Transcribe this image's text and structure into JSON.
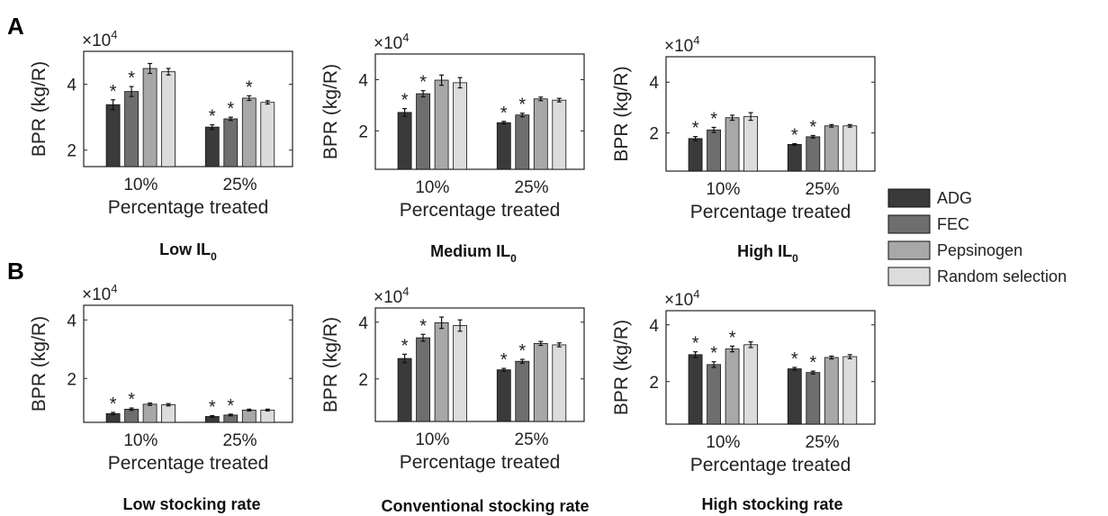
{
  "panel_labels": [
    "A",
    "B"
  ],
  "legend": [
    {
      "label": "ADG",
      "color": "#3a3a3a"
    },
    {
      "label": "FEC",
      "color": "#6e6e6e"
    },
    {
      "label": "Pepsinogen",
      "color": "#a8a8a8"
    },
    {
      "label": "Random selection",
      "color": "#dcdcdc"
    }
  ],
  "chart_data": [
    {
      "type": "bar",
      "panel": "A",
      "caption": "Low IL",
      "caption_sub": "0",
      "categories": [
        "10%",
        "25%"
      ],
      "xlabel": "Percentage treated",
      "ylabel": "BPR (kg/R)",
      "exponent_base": "×10",
      "exponent_power": "4",
      "ylim": [
        1.5,
        5.0
      ],
      "yticks": [
        2,
        4
      ],
      "series": [
        {
          "name": "ADG",
          "values": [
            3.38,
            2.7
          ],
          "errors": [
            0.15,
            0.07
          ],
          "star": [
            true,
            true
          ]
        },
        {
          "name": "FEC",
          "values": [
            3.78,
            2.95
          ],
          "errors": [
            0.15,
            0.05
          ],
          "star": [
            true,
            true
          ]
        },
        {
          "name": "Pepsinogen",
          "values": [
            4.48,
            3.58
          ],
          "errors": [
            0.15,
            0.07
          ],
          "star": [
            false,
            true
          ]
        },
        {
          "name": "Random selection",
          "values": [
            4.38,
            3.45
          ],
          "errors": [
            0.1,
            0.05
          ],
          "star": [
            false,
            false
          ]
        }
      ]
    },
    {
      "type": "bar",
      "panel": "A",
      "caption": "Medium IL",
      "caption_sub": "0",
      "categories": [
        "10%",
        "25%"
      ],
      "xlabel": "Percentage treated",
      "ylabel": "BPR (kg/R)",
      "exponent_base": "×10",
      "exponent_power": "4",
      "ylim": [
        0.5,
        5.0
      ],
      "yticks": [
        2,
        4
      ],
      "series": [
        {
          "name": "ADG",
          "values": [
            2.72,
            2.32
          ],
          "errors": [
            0.15,
            0.05
          ],
          "star": [
            true,
            true
          ]
        },
        {
          "name": "FEC",
          "values": [
            3.45,
            2.62
          ],
          "errors": [
            0.12,
            0.07
          ],
          "star": [
            true,
            true
          ]
        },
        {
          "name": "Pepsinogen",
          "values": [
            3.98,
            3.25
          ],
          "errors": [
            0.2,
            0.07
          ],
          "star": [
            false,
            false
          ]
        },
        {
          "name": "Random selection",
          "values": [
            3.88,
            3.2
          ],
          "errors": [
            0.2,
            0.07
          ],
          "star": [
            false,
            false
          ]
        }
      ]
    },
    {
      "type": "bar",
      "panel": "A",
      "caption": "High IL",
      "caption_sub": "0",
      "categories": [
        "10%",
        "25%"
      ],
      "xlabel": "Percentage treated",
      "ylabel": "BPR (kg/R)",
      "exponent_base": "×10",
      "exponent_power": "4",
      "ylim": [
        0.5,
        5.0
      ],
      "yticks": [
        2,
        4
      ],
      "series": [
        {
          "name": "ADG",
          "values": [
            1.78,
            1.55
          ],
          "errors": [
            0.08,
            0.03
          ],
          "star": [
            true,
            true
          ]
        },
        {
          "name": "FEC",
          "values": [
            2.12,
            1.85
          ],
          "errors": [
            0.1,
            0.05
          ],
          "star": [
            true,
            true
          ]
        },
        {
          "name": "Pepsinogen",
          "values": [
            2.6,
            2.28
          ],
          "errors": [
            0.1,
            0.05
          ],
          "star": [
            false,
            false
          ]
        },
        {
          "name": "Random selection",
          "values": [
            2.65,
            2.28
          ],
          "errors": [
            0.15,
            0.05
          ],
          "star": [
            false,
            false
          ]
        }
      ]
    },
    {
      "type": "bar",
      "panel": "B",
      "caption": "Low stocking rate",
      "caption_sub": "",
      "categories": [
        "10%",
        "25%"
      ],
      "xlabel": "Percentage treated",
      "ylabel": "BPR (kg/R)",
      "exponent_base": "×10",
      "exponent_power": "4",
      "ylim": [
        0.5,
        4.5
      ],
      "yticks": [
        2,
        4
      ],
      "series": [
        {
          "name": "ADG",
          "values": [
            0.8,
            0.7
          ],
          "errors": [
            0.04,
            0.03
          ],
          "star": [
            true,
            true
          ]
        },
        {
          "name": "FEC",
          "values": [
            0.95,
            0.75
          ],
          "errors": [
            0.04,
            0.03
          ],
          "star": [
            true,
            true
          ]
        },
        {
          "name": "Pepsinogen",
          "values": [
            1.12,
            0.92
          ],
          "errors": [
            0.04,
            0.03
          ],
          "star": [
            false,
            false
          ]
        },
        {
          "name": "Random selection",
          "values": [
            1.1,
            0.92
          ],
          "errors": [
            0.04,
            0.03
          ],
          "star": [
            false,
            false
          ]
        }
      ]
    },
    {
      "type": "bar",
      "panel": "B",
      "caption": "Conventional stocking rate",
      "caption_sub": "",
      "categories": [
        "10%",
        "25%"
      ],
      "xlabel": "Percentage treated",
      "ylabel": "BPR (kg/R)",
      "exponent_base": "×10",
      "exponent_power": "4",
      "ylim": [
        0.5,
        4.5
      ],
      "yticks": [
        2,
        4
      ],
      "series": [
        {
          "name": "ADG",
          "values": [
            2.72,
            2.32
          ],
          "errors": [
            0.15,
            0.05
          ],
          "star": [
            true,
            true
          ]
        },
        {
          "name": "FEC",
          "values": [
            3.45,
            2.62
          ],
          "errors": [
            0.12,
            0.07
          ],
          "star": [
            true,
            true
          ]
        },
        {
          "name": "Pepsinogen",
          "values": [
            3.98,
            3.25
          ],
          "errors": [
            0.2,
            0.07
          ],
          "star": [
            false,
            false
          ]
        },
        {
          "name": "Random selection",
          "values": [
            3.88,
            3.2
          ],
          "errors": [
            0.2,
            0.07
          ],
          "star": [
            false,
            false
          ]
        }
      ]
    },
    {
      "type": "bar",
      "panel": "B",
      "caption": "High stocking rate",
      "caption_sub": "",
      "categories": [
        "10%",
        "25%"
      ],
      "xlabel": "Percentage treated",
      "ylabel": "BPR (kg/R)",
      "exponent_base": "×10",
      "exponent_power": "4",
      "ylim": [
        0.5,
        4.5
      ],
      "yticks": [
        2,
        4
      ],
      "series": [
        {
          "name": "ADG",
          "values": [
            2.95,
            2.45
          ],
          "errors": [
            0.1,
            0.05
          ],
          "star": [
            true,
            true
          ]
        },
        {
          "name": "FEC",
          "values": [
            2.6,
            2.32
          ],
          "errors": [
            0.1,
            0.05
          ],
          "star": [
            true,
            true
          ]
        },
        {
          "name": "Pepsinogen",
          "values": [
            3.15,
            2.85
          ],
          "errors": [
            0.1,
            0.05
          ],
          "star": [
            true,
            false
          ]
        },
        {
          "name": "Random selection",
          "values": [
            3.3,
            2.88
          ],
          "errors": [
            0.1,
            0.07
          ],
          "star": [
            false,
            false
          ]
        }
      ]
    }
  ]
}
